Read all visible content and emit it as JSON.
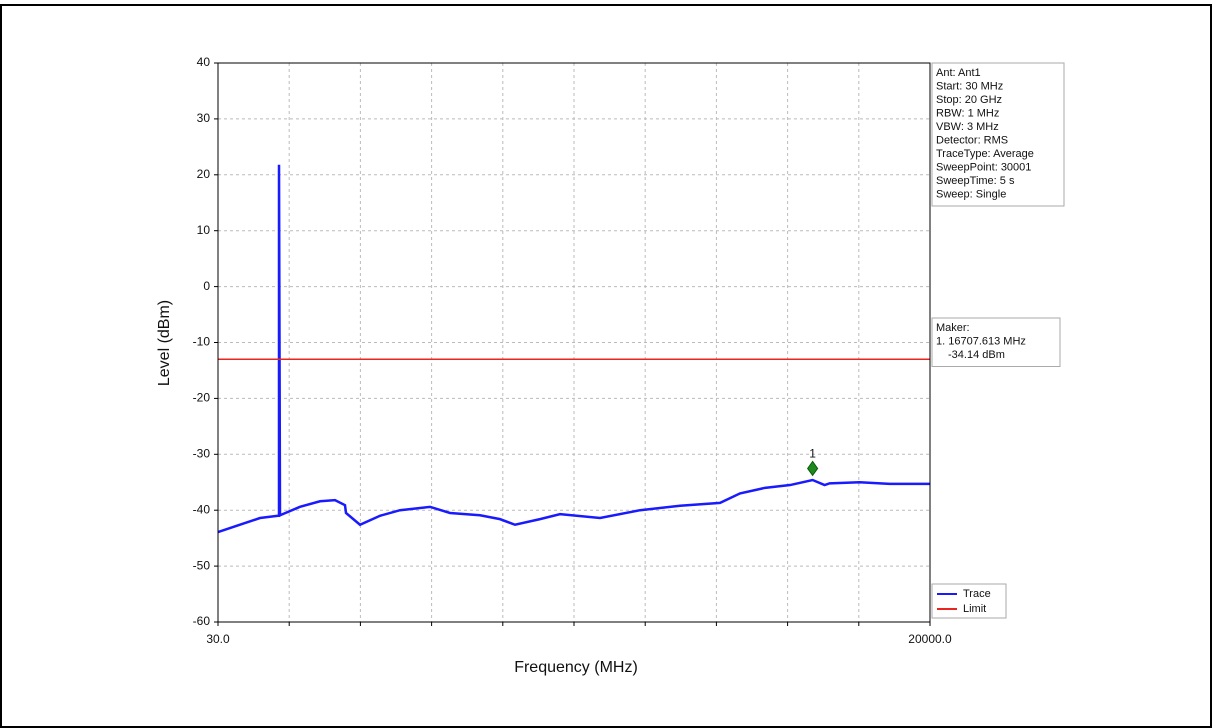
{
  "chart_data": {
    "type": "line",
    "xlabel": "Frequency (MHz)",
    "ylabel": "Level (dBm)",
    "xlim": [
      30,
      20000
    ],
    "ylim": [
      -60,
      40
    ],
    "xticks": [
      {
        "value": 30,
        "label": "30.0"
      },
      {
        "value": 20000,
        "label": "20000.0"
      }
    ],
    "yticks": [
      40,
      30,
      20,
      10,
      0,
      -10,
      -20,
      -30,
      -40,
      -50,
      -60
    ],
    "grid": true,
    "legend": "lower right",
    "series": [
      {
        "name": "Trace",
        "color": "#1a1aff",
        "x": [
          30,
          647,
          1208,
          1713,
          1741,
          1741,
          1769,
          2330,
          2891,
          3312,
          3592,
          3620,
          4013,
          4574,
          5135,
          5977,
          6538,
          7379,
          7940,
          8361,
          9062,
          9623,
          10745,
          11867,
          12989,
          14111,
          14672,
          15373,
          16075,
          16707,
          17044,
          17185,
          18026,
          18868,
          20000
        ],
        "values": [
          -43.9,
          -42.6,
          -41.4,
          -41.0,
          -41.0,
          21.8,
          -40.9,
          -39.4,
          -38.4,
          -38.2,
          -39.1,
          -40.5,
          -42.6,
          -41.0,
          -40.0,
          -39.4,
          -40.5,
          -40.9,
          -41.6,
          -42.6,
          -41.6,
          -40.7,
          -41.4,
          -40.0,
          -39.2,
          -38.7,
          -37.0,
          -36.0,
          -35.5,
          -34.6,
          -35.5,
          -35.2,
          -35.0,
          -35.3,
          -35.3
        ]
      },
      {
        "name": "Limit",
        "color": "#e8251f",
        "x": [
          30,
          20000
        ],
        "values": [
          -13,
          -13
        ]
      }
    ],
    "marker": {
      "label": "1",
      "x": 16707.613,
      "y": -34.14,
      "color": "#1e8a1e"
    },
    "info_lines": [
      "Ant: Ant1",
      "Start: 30 MHz",
      "Stop: 20 GHz",
      "RBW: 1 MHz",
      "VBW: 3 MHz",
      "Detector: RMS",
      "TraceType: Average",
      "SweepPoint: 30001",
      "SweepTime: 5 s",
      "Sweep: Single"
    ],
    "maker_lines": [
      "Maker:",
      "1. 16707.613 MHz",
      "-34.14 dBm"
    ]
  }
}
